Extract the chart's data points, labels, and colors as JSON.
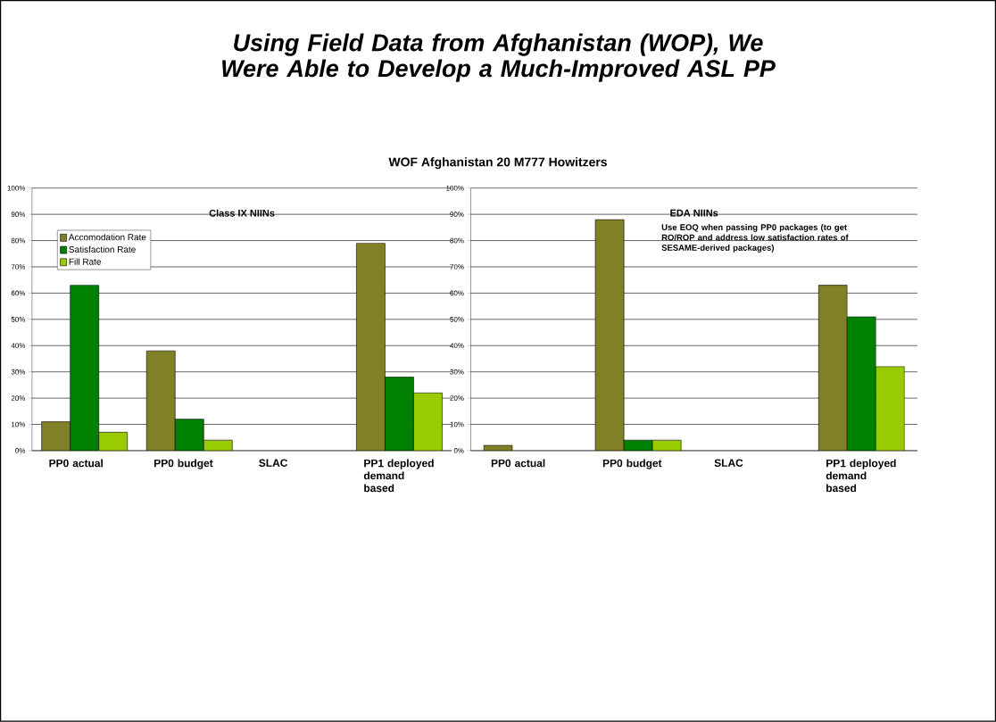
{
  "chart_data": [
    {
      "type": "bar",
      "title": "Using Field Data from Afghanistan (WOP), We Were Able to Develop a Much-Improved ASL PP",
      "subtitle": "WOF Afghanistan 20 M777 Howitzers",
      "annotations": [
        "Class IX NIINs"
      ],
      "categories": [
        "PP0 actual",
        "PP0 budget",
        "SLAC",
        "PP1 deployed demand based"
      ],
      "series": [
        {
          "name": "Accomodation Rate",
          "color": "#808026",
          "values": [
            11,
            38,
            null,
            79
          ]
        },
        {
          "name": "Satisfaction Rate",
          "color": "#008000",
          "values": [
            63,
            12,
            null,
            28
          ]
        },
        {
          "name": "Fill Rate",
          "color": "#99cc00",
          "values": [
            7,
            4,
            null,
            22
          ]
        }
      ],
      "ylim": [
        0,
        100
      ],
      "yticks": [
        {
          "value": 0,
          "label": "0%"
        },
        {
          "value": 10,
          "label": "10%"
        },
        {
          "value": 20,
          "label": "20%"
        },
        {
          "value": 30,
          "label": "30%"
        },
        {
          "value": 40,
          "label": "40%"
        },
        {
          "value": 50,
          "label": "50%"
        },
        {
          "value": 60,
          "label": "60%"
        },
        {
          "value": 70,
          "label": "70%"
        },
        {
          "value": 80,
          "label": "80%"
        },
        {
          "value": 90,
          "label": "90%"
        },
        {
          "value": 100,
          "label": "100%"
        }
      ],
      "grid": "y",
      "legend": "top left"
    },
    {
      "type": "bar",
      "annotations": [
        "EDA NIINs",
        "Use EOQ when passing PP0 packages (to get RO/ROP and address low satisfaction rates of SESAME-derived packages)"
      ],
      "categories": [
        "PP0 actual",
        "PP0 budget",
        "SLAC",
        "PP1 deployed demand based"
      ],
      "series": [
        {
          "color": "#808026",
          "values": [
            2,
            88,
            null,
            63
          ]
        },
        {
          "color": "#008000",
          "values": [
            null,
            4,
            null,
            51
          ]
        },
        {
          "color": "#99cc00",
          "values": [
            null,
            4,
            null,
            32
          ]
        }
      ],
      "ylim": [
        0,
        100
      ],
      "yticks": [
        {
          "value": 0,
          "label": "0%"
        },
        {
          "value": 10,
          "label": "10%"
        },
        {
          "value": 20,
          "label": "20%"
        },
        {
          "value": 30,
          "label": "30%"
        },
        {
          "value": 40,
          "label": "40%"
        },
        {
          "value": 50,
          "label": "50%"
        },
        {
          "value": 60,
          "label": "60%"
        },
        {
          "value": 70,
          "label": "70%"
        },
        {
          "value": 80,
          "label": "80%"
        },
        {
          "value": 90,
          "label": "90%"
        },
        {
          "value": 100,
          "label": "100%"
        }
      ],
      "grid": "y",
      "legend": false
    }
  ]
}
